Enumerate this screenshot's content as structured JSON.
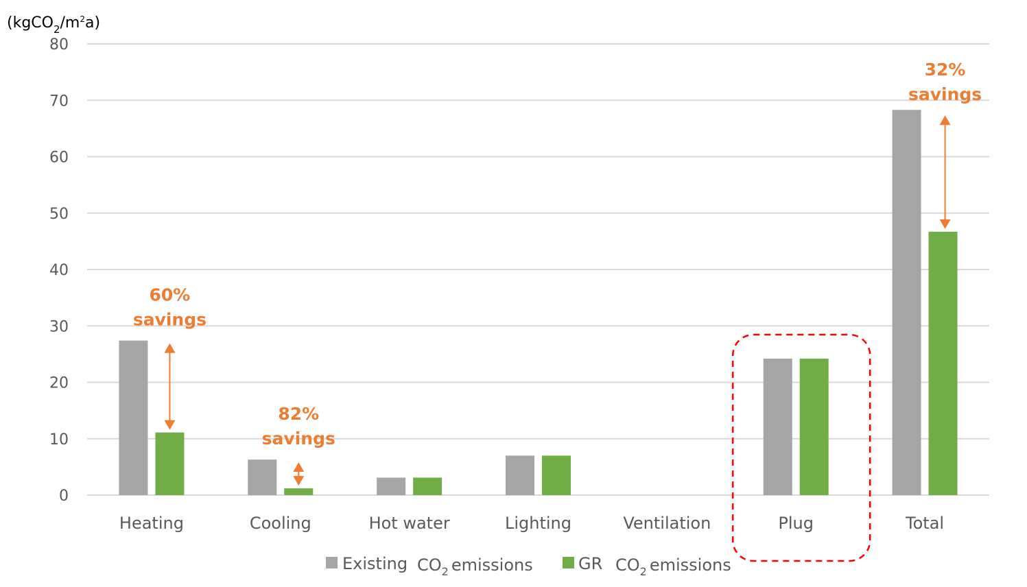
{
  "chart_data": {
    "type": "bar",
    "ylabel": {
      "prefix": "(kgCO",
      "sub": "2",
      "mid": "/m",
      "sup": "2",
      "suffix": "a)"
    },
    "ylim": [
      0,
      80
    ],
    "yticks": [
      0,
      10,
      20,
      30,
      40,
      50,
      60,
      70,
      80
    ],
    "grid": true,
    "legend_position": "bottom",
    "categories": [
      "Heating",
      "Cooling",
      "Hot water",
      "Lighting",
      "Ventilation",
      "Plug",
      "Total"
    ],
    "series": [
      {
        "name": "Existing",
        "name_suffix": {
          "pre": "CO",
          "sub": "2",
          "post": "emissions"
        },
        "color": "#a5a5a5",
        "values": [
          27.4,
          6.3,
          3.1,
          7.0,
          0,
          24.2,
          68.3
        ]
      },
      {
        "name": "GR",
        "name_suffix": {
          "pre": "CO",
          "sub": "2",
          "post": "emissions"
        },
        "color": "#70ad47",
        "values": [
          11.1,
          1.2,
          3.1,
          7.0,
          0,
          24.2,
          46.7
        ]
      }
    ],
    "annotations": [
      {
        "category": "Heating",
        "line1": "60%",
        "line2": "savings"
      },
      {
        "category": "Cooling",
        "line1": "82%",
        "line2": "savings"
      },
      {
        "category": "Total",
        "line1": "32%",
        "line2": "savings"
      }
    ],
    "highlight": {
      "category": "Plug",
      "style": "dashed-box",
      "color": "#ff0000"
    },
    "annotation_color": "#ed7d31",
    "grid_color": "#d9d9d9"
  }
}
